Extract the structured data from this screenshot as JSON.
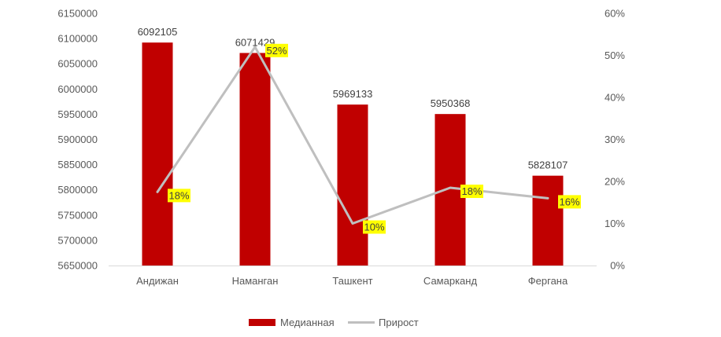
{
  "chart_data": {
    "type": "bar",
    "categories": [
      "Андижан",
      "Наманган",
      "Ташкент",
      "Самарканд",
      "Фергана"
    ],
    "series": [
      {
        "name": "Медианная",
        "type": "bar",
        "axis": "left",
        "values": [
          6092105,
          6071429,
          5969133,
          5950368,
          5828107
        ],
        "labels": [
          "6092105",
          "6071429",
          "5969133",
          "5950368",
          "5828107"
        ],
        "color": "#c00000"
      },
      {
        "name": "Прирост",
        "type": "line",
        "axis": "right",
        "values": [
          0.175,
          0.52,
          0.1,
          0.185,
          0.16
        ],
        "labels": [
          "18%",
          "52%",
          "10%",
          "18%",
          "16%"
        ],
        "color": "#bfbfbf",
        "label_background": "#ffff00"
      }
    ],
    "y_left": {
      "ylim": [
        5650000,
        6150000
      ],
      "ticks": [
        "5650000",
        "5700000",
        "5750000",
        "5800000",
        "5850000",
        "5900000",
        "5950000",
        "6000000",
        "6050000",
        "6100000",
        "6150000"
      ]
    },
    "y_right": {
      "ylim": [
        0,
        0.6
      ],
      "ticks": [
        "0%",
        "10%",
        "20%",
        "30%",
        "40%",
        "50%",
        "60%"
      ]
    },
    "grid": false,
    "legend": "bottom"
  }
}
